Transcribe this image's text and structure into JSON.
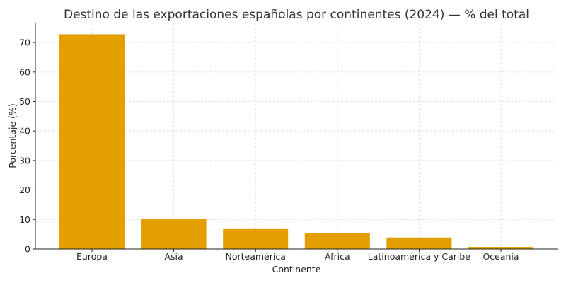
{
  "chart_data": {
    "type": "bar",
    "title": "Destino de las exportaciones españolas por continentes (2024) — % del total",
    "xlabel": "Continente",
    "ylabel": "Porcentaje (%)",
    "categories": [
      "Europa",
      "Asia",
      "Norteamérica",
      "África",
      "Latinoamérica y Caribe",
      "Oceanía"
    ],
    "values": [
      72.8,
      10.3,
      7.0,
      5.5,
      3.9,
      0.7
    ],
    "ylim": [
      0,
      76.5
    ],
    "yticks": [
      "0",
      "10",
      "20",
      "30",
      "40",
      "50",
      "60",
      "70"
    ],
    "grid": true,
    "bar_color": "#E39E00"
  }
}
